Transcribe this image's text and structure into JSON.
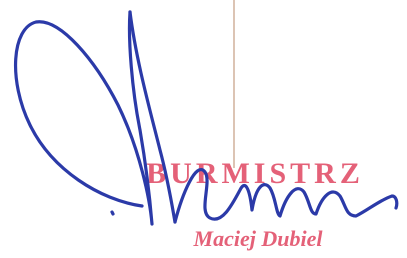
{
  "stamp": {
    "title": "BURMISTRZ",
    "name": "Maciej Dubiel"
  }
}
